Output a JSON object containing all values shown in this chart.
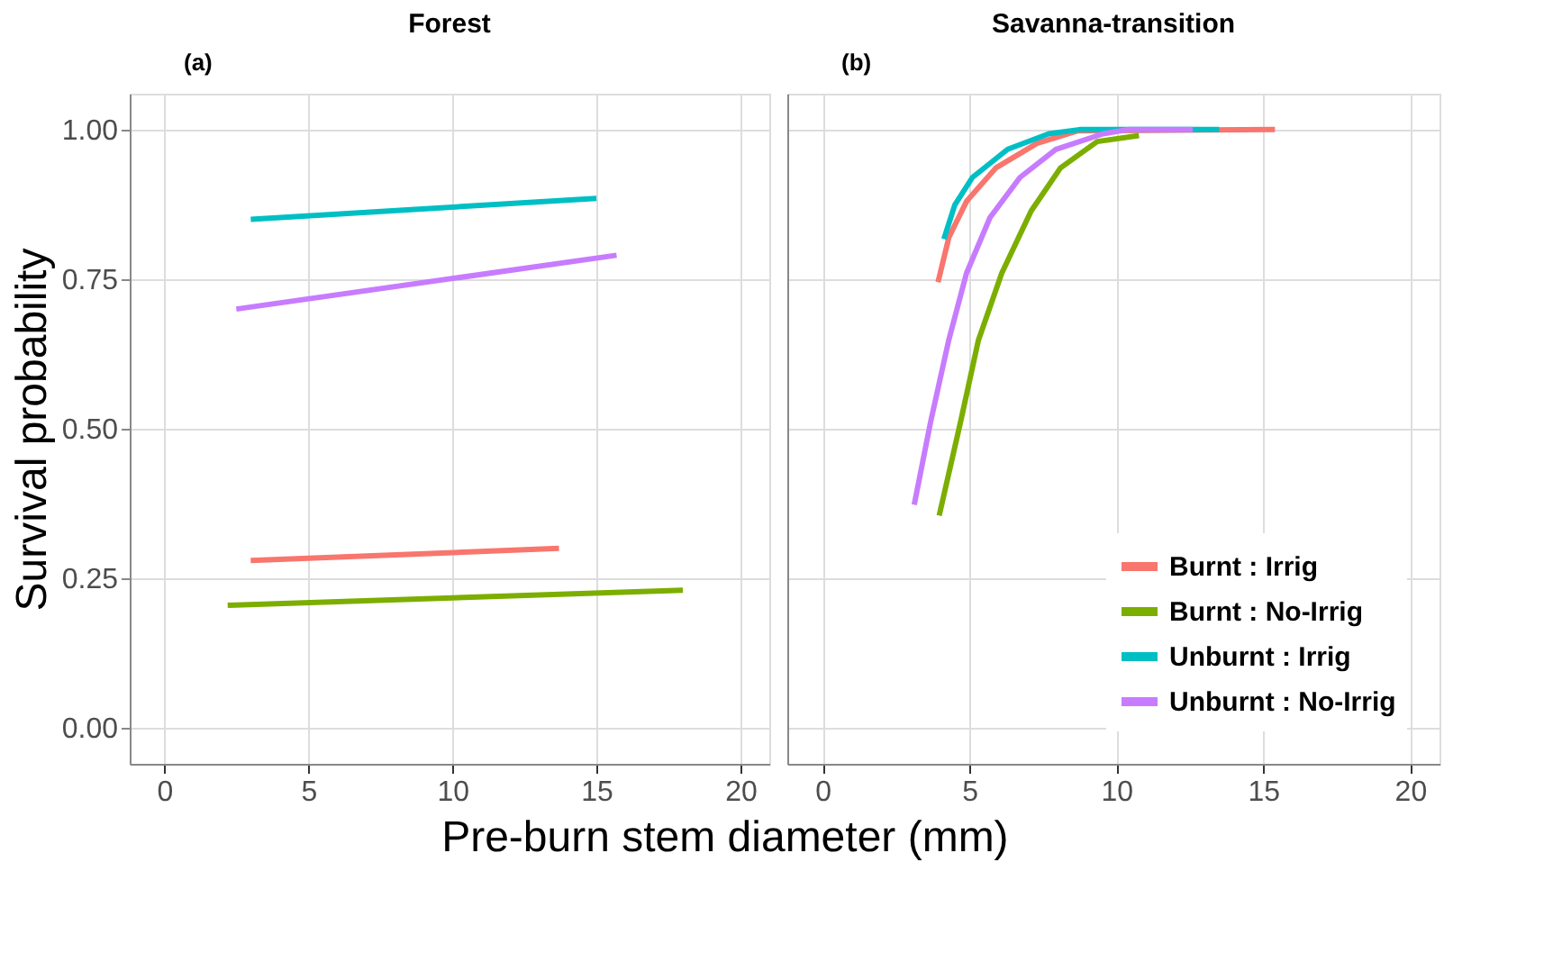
{
  "chart_data": [
    {
      "type": "line",
      "title": "Forest",
      "annotations": [
        "(a)"
      ],
      "xlabel": "Pre-burn stem diameter (mm)",
      "ylabel": "Survival probability",
      "xlim": [
        -1.2,
        21
      ],
      "xticks": [
        0,
        5,
        10,
        15,
        20
      ],
      "ylim": [
        -0.06,
        1.06
      ],
      "yticks": [
        {
          "value": 0,
          "label": "0.00"
        },
        {
          "value": 0.25,
          "label": "0.25"
        },
        {
          "value": 0.5,
          "label": "0.50"
        },
        {
          "value": 0.75,
          "label": "0.75"
        },
        {
          "value": 1,
          "label": "1.00"
        }
      ],
      "grid": true,
      "legend": false,
      "series": [
        {
          "color": "#f8766d",
          "x": [
            3,
            13.7
          ],
          "values": [
            0.28,
            0.3
          ]
        },
        {
          "color": "#7cae00",
          "x": [
            2.2,
            18
          ],
          "values": [
            0.205,
            0.23
          ]
        },
        {
          "color": "#00bfc4",
          "x": [
            3,
            15
          ],
          "values": [
            0.85,
            0.885
          ]
        },
        {
          "color": "#c77cff",
          "x": [
            2.5,
            15.7
          ],
          "values": [
            0.7,
            0.79
          ]
        }
      ]
    },
    {
      "type": "line",
      "title": "Savanna-transition",
      "annotations": [
        "(b)"
      ],
      "xlim": [
        -1.2,
        21
      ],
      "xticks": [
        0,
        5,
        10,
        15,
        20
      ],
      "ylim": [
        -0.06,
        1.06
      ],
      "yticks": [
        0,
        0.25,
        0.5,
        0.75,
        1
      ],
      "tick_labels": "x",
      "grid": true,
      "legend": "bottom right",
      "series": [
        {
          "name": "Burnt : Irrig",
          "color": "#f8766d",
          "x": [
            3.93,
            4.3,
            4.9,
            5.9,
            7.3,
            8.7,
            15.4
          ],
          "values": [
            0.745,
            0.82,
            0.88,
            0.936,
            0.977,
            0.998,
            1.0
          ]
        },
        {
          "name": "Burnt : No-Irrig",
          "color": "#7cae00",
          "x": [
            3.97,
            4.7,
            5.3,
            6.1,
            7.1,
            8.1,
            9.35,
            10.77
          ],
          "values": [
            0.355,
            0.512,
            0.647,
            0.76,
            0.864,
            0.936,
            0.98,
            0.99
          ]
        },
        {
          "name": "Unburnt : Irrig",
          "color": "#00bfc4",
          "x": [
            4.13,
            4.5,
            5.1,
            6.3,
            7.7,
            8.75,
            13.5
          ],
          "values": [
            0.817,
            0.874,
            0.92,
            0.967,
            0.993,
            1.0,
            1.0
          ]
        },
        {
          "name": "Unburnt : No-Irrig",
          "color": "#c77cff",
          "x": [
            3.12,
            3.68,
            4.29,
            4.9,
            5.7,
            6.72,
            7.94,
            9.55,
            10.4,
            12.6
          ],
          "values": [
            0.373,
            0.512,
            0.647,
            0.76,
            0.853,
            0.92,
            0.967,
            0.993,
            1.0,
            1.0
          ]
        }
      ]
    }
  ]
}
